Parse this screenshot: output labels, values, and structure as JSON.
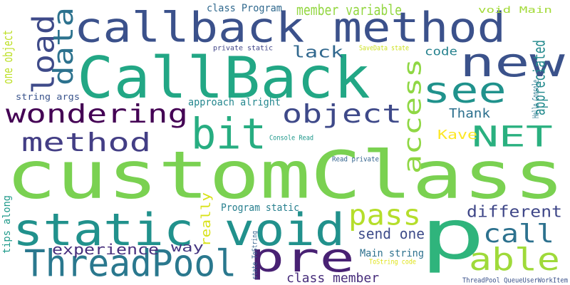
{
  "words": [
    {
      "text": "customClass",
      "color": "#7ad151"
    },
    {
      "text": "CallBack",
      "color": "#22a785"
    },
    {
      "text": "callback method",
      "color": "#3b518b"
    },
    {
      "text": "p",
      "color": "#2fb47c"
    },
    {
      "text": "static void",
      "color": "#21918c"
    },
    {
      "text": "new",
      "color": "#3b528b"
    },
    {
      "text": "see",
      "color": "#20928c"
    },
    {
      "text": "pre",
      "color": "#482173"
    },
    {
      "text": "ThreadPool",
      "color": "#2a788e"
    },
    {
      "text": "bit",
      "color": "#27ad81"
    },
    {
      "text": "wondering",
      "color": "#440154"
    },
    {
      "text": "object",
      "color": "#3e4989"
    },
    {
      "text": "NET",
      "color": "#2ab07f"
    },
    {
      "text": "load",
      "color": "#3e4a89"
    },
    {
      "text": "data",
      "color": "#2c728e"
    },
    {
      "text": "method",
      "color": "#433e85"
    },
    {
      "text": "access",
      "color": "#8fd744"
    },
    {
      "text": "able",
      "color": "#9fda3a"
    },
    {
      "text": "pass",
      "color": "#b5de2b"
    },
    {
      "text": "call",
      "color": "#2c718e"
    },
    {
      "text": "different",
      "color": "#3f4788"
    },
    {
      "text": "lack",
      "color": "#31688e"
    },
    {
      "text": "Thank",
      "color": "#2d708e"
    },
    {
      "text": "code",
      "color": "#26828e"
    },
    {
      "text": "experience",
      "color": "#472f7d"
    },
    {
      "text": "appreciated",
      "color": "#238a8d"
    },
    {
      "text": "member variable",
      "color": "#93d741"
    },
    {
      "text": "class member",
      "color": "#472d7b"
    },
    {
      "text": "send one",
      "color": "#3e4c8a"
    },
    {
      "text": "Kave",
      "color": "#fde725"
    },
    {
      "text": "way",
      "color": "#453581"
    },
    {
      "text": "really",
      "color": "#d8e219"
    },
    {
      "text": "one object",
      "color": "#bddf26"
    },
    {
      "text": "class Program",
      "color": "#30698e"
    },
    {
      "text": "approach alright",
      "color": "#24878e"
    },
    {
      "text": "Program static",
      "color": "#277f8e"
    },
    {
      "text": "Main string",
      "color": "#2d718e"
    },
    {
      "text": "void Main",
      "color": "#a2da37"
    },
    {
      "text": "string args",
      "color": "#3a548c"
    },
    {
      "text": "tips along",
      "color": "#1f9a8a"
    },
    {
      "text": "private static",
      "color": "#404588"
    },
    {
      "text": "SaveData state",
      "color": "#cde11d"
    },
    {
      "text": "Hello Console",
      "color": "#2a788e"
    },
    {
      "text": "Console Read",
      "color": "#1f988b"
    },
    {
      "text": "Read private",
      "color": "#33638d"
    },
    {
      "text": "state ToString",
      "color": "#33638d"
    },
    {
      "text": "ToString code",
      "color": "#dfe318"
    },
    {
      "text": "ThreadPool QueueUserWorkItem",
      "color": "#3b528b"
    }
  ]
}
